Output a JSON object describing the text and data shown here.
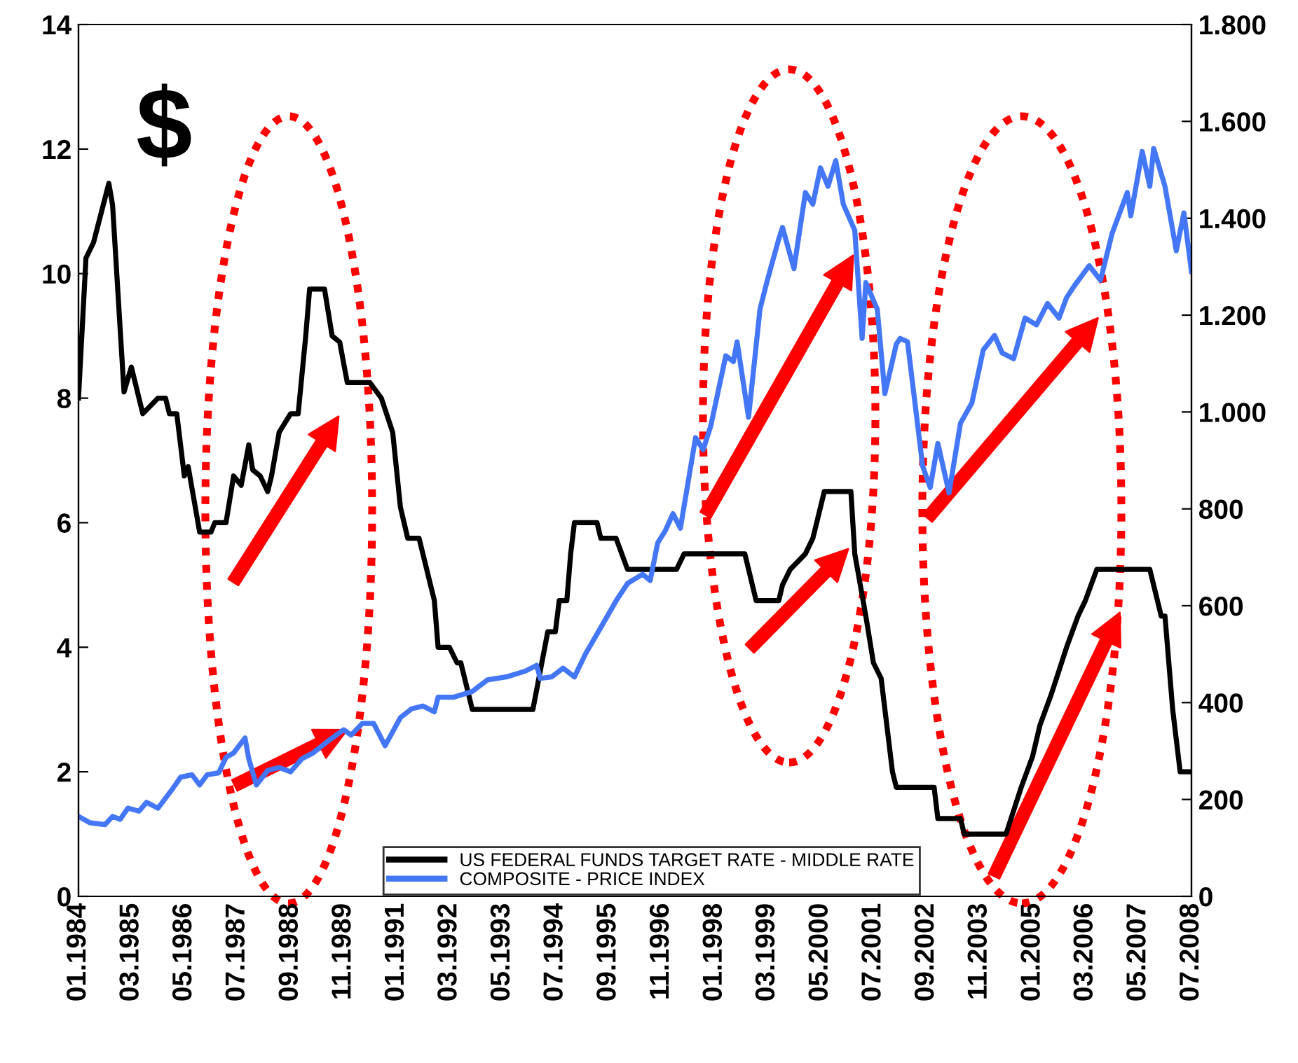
{
  "chart_data": {
    "type": "line",
    "annotations": [
      "$"
    ],
    "legend": "bottom",
    "grid": false,
    "xlim": [
      "1984-01",
      "2008-07"
    ],
    "xticks": [
      {
        "value": "1984-01",
        "label": "01.1984"
      },
      {
        "value": "1985-03",
        "label": "03.1985"
      },
      {
        "value": "1986-05",
        "label": "05.1986"
      },
      {
        "value": "1987-07",
        "label": "07.1987"
      },
      {
        "value": "1988-09",
        "label": "09.1988"
      },
      {
        "value": "1989-11",
        "label": "11.1989"
      },
      {
        "value": "1991-01",
        "label": "01.1991"
      },
      {
        "value": "1992-03",
        "label": "03.1992"
      },
      {
        "value": "1993-05",
        "label": "05.1993"
      },
      {
        "value": "1994-07",
        "label": "07.1994"
      },
      {
        "value": "1995-09",
        "label": "09.1995"
      },
      {
        "value": "1996-11",
        "label": "11.1996"
      },
      {
        "value": "1998-01",
        "label": "01.1998"
      },
      {
        "value": "1999-03",
        "label": "03.1999"
      },
      {
        "value": "2000-05",
        "label": "05.2000"
      },
      {
        "value": "2001-07",
        "label": "07.2001"
      },
      {
        "value": "2002-09",
        "label": "09.2002"
      },
      {
        "value": "2003-11",
        "label": "11.2003"
      },
      {
        "value": "2005-01",
        "label": "01.2005"
      },
      {
        "value": "2006-03",
        "label": "03.2006"
      },
      {
        "value": "2007-05",
        "label": "05.2007"
      },
      {
        "value": "2008-07",
        "label": "07.2008"
      }
    ],
    "ylim": [
      0,
      14
    ],
    "yticks": [
      0,
      2,
      4,
      6,
      8,
      10,
      12,
      14
    ],
    "y2lim": [
      0,
      1800
    ],
    "y2ticks": [
      0,
      200,
      400,
      600,
      800,
      {
        "value": 1000,
        "label": "1.000"
      },
      {
        "value": 1200,
        "label": "1.200"
      },
      {
        "value": 1400,
        "label": "1.400"
      },
      {
        "value": 1600,
        "label": "1.600"
      },
      {
        "value": 1800,
        "label": "1.800"
      }
    ],
    "series": [
      {
        "name": "US FEDERAL FUNDS TARGET RATE - MIDDLE RATE",
        "color": "#000000",
        "x": [
          "1984-01",
          "1984-03",
          "1984-05",
          "1984-09",
          "1984-10",
          "1985-01",
          "1985-03",
          "1985-06",
          "1985-10",
          "1985-12",
          "1986-01",
          "1986-03",
          "1986-05",
          "1986-06",
          "1986-09",
          "1986-12",
          "1987-01",
          "1987-04",
          "1987-06",
          "1987-08",
          "1987-10",
          "1987-11",
          "1988-01",
          "1988-03",
          "1988-04",
          "1988-06",
          "1988-09",
          "1988-11",
          "1989-01",
          "1989-02",
          "1989-06",
          "1989-08",
          "1989-10",
          "1989-12",
          "1990-06",
          "1990-09",
          "1990-12",
          "1991-02",
          "1991-04",
          "1991-07",
          "1991-11",
          "1991-12",
          "1992-03",
          "1992-05",
          "1992-06",
          "1992-09",
          "1994-01",
          "1994-05",
          "1994-07",
          "1994-08",
          "1994-10",
          "1994-11",
          "1994-12",
          "1995-06",
          "1995-07",
          "1995-11",
          "1996-02",
          "1997-03",
          "1997-05",
          "1998-09",
          "1998-12",
          "1999-06",
          "1999-07",
          "1999-09",
          "2000-01",
          "2000-03",
          "2000-04",
          "2000-06",
          "2001-01",
          "2001-02",
          "2001-05",
          "2001-07",
          "2001-09",
          "2001-12",
          "2002-01",
          "2002-11",
          "2002-12",
          "2003-06",
          "2003-07",
          "2004-06",
          "2004-10",
          "2005-01",
          "2005-03",
          "2005-06",
          "2005-10",
          "2006-01",
          "2006-03",
          "2006-06",
          "2007-08",
          "2007-11",
          "2007-12",
          "2008-02",
          "2008-04",
          "2008-07"
        ],
        "values": [
          8.0,
          10.25,
          10.5,
          11.45,
          11.1,
          8.1,
          8.5,
          7.75,
          8.0,
          8.0,
          7.75,
          7.75,
          6.75,
          6.9,
          5.85,
          5.85,
          6.0,
          6.0,
          6.75,
          6.6,
          7.25,
          6.85,
          6.75,
          6.5,
          6.75,
          7.45,
          7.75,
          7.75,
          9.0,
          9.75,
          9.75,
          9.0,
          8.9,
          8.25,
          8.25,
          8.0,
          7.45,
          6.25,
          5.75,
          5.75,
          4.75,
          4.0,
          4.0,
          3.75,
          3.75,
          3.0,
          3.0,
          4.25,
          4.25,
          4.75,
          4.75,
          5.5,
          6.0,
          6.0,
          5.75,
          5.75,
          5.25,
          5.25,
          5.5,
          5.5,
          4.75,
          4.75,
          5.0,
          5.25,
          5.5,
          5.75,
          6.0,
          6.5,
          6.5,
          5.5,
          4.5,
          3.75,
          3.5,
          2.0,
          1.75,
          1.75,
          1.25,
          1.25,
          1.0,
          1.0,
          1.75,
          2.25,
          2.75,
          3.25,
          4.0,
          4.5,
          4.75,
          5.25,
          5.25,
          4.5,
          4.5,
          3.0,
          2.0,
          2.0
        ]
      },
      {
        "name": "COMPOSITE - PRICE INDEX",
        "axis": "y2",
        "color": "#4477f5",
        "x": [
          "1984-01",
          "1984-04",
          "1984-08",
          "1984-10",
          "1984-12",
          "1985-02",
          "1985-05",
          "1985-07",
          "1985-10",
          "1986-02",
          "1986-04",
          "1986-07",
          "1986-09",
          "1986-11",
          "1987-02",
          "1987-04",
          "1987-06",
          "1987-09",
          "1987-10",
          "1987-12",
          "1988-03",
          "1988-06",
          "1988-09",
          "1988-12",
          "1989-03",
          "1989-07",
          "1989-11",
          "1990-01",
          "1990-04",
          "1990-07",
          "1990-10",
          "1991-02",
          "1991-05",
          "1991-08",
          "1991-11",
          "1991-12",
          "1992-04",
          "1992-09",
          "1993-01",
          "1993-06",
          "1993-11",
          "1994-02",
          "1994-03",
          "1994-06",
          "1994-09",
          "1994-12",
          "1995-03",
          "1995-07",
          "1995-11",
          "1996-02",
          "1996-06",
          "1996-08",
          "1996-10",
          "1996-12",
          "1997-02",
          "1997-04",
          "1997-08",
          "1997-10",
          "1997-12",
          "1998-04",
          "1998-06",
          "1998-07",
          "1998-10",
          "1999-01",
          "1999-03",
          "1999-06",
          "1999-07",
          "1999-10",
          "2000-01",
          "2000-03",
          "2000-05",
          "2000-07",
          "2000-09",
          "2000-11",
          "2001-02",
          "2001-04",
          "2001-05",
          "2001-08",
          "2001-10",
          "2002-01",
          "2002-02",
          "2002-04",
          "2002-08",
          "2002-10",
          "2002-12",
          "2003-03",
          "2003-06",
          "2003-09",
          "2003-12",
          "2004-03",
          "2004-05",
          "2004-08",
          "2004-11",
          "2005-02",
          "2005-05",
          "2005-08",
          "2005-10",
          "2005-12",
          "2006-04",
          "2006-07",
          "2006-10",
          "2007-02",
          "2007-03",
          "2007-06",
          "2007-08",
          "2007-09",
          "2007-12",
          "2008-03",
          "2008-05",
          "2008-07"
        ],
        "values": [
          165,
          152,
          148,
          165,
          159,
          182,
          176,
          194,
          182,
          224,
          246,
          251,
          230,
          251,
          255,
          287,
          296,
          327,
          284,
          230,
          260,
          266,
          257,
          284,
          296,
          321,
          344,
          333,
          357,
          357,
          311,
          369,
          387,
          393,
          381,
          411,
          411,
          423,
          447,
          453,
          465,
          477,
          450,
          453,
          471,
          453,
          501,
          555,
          610,
          646,
          665,
          652,
          730,
          755,
          790,
          760,
          947,
          922,
          971,
          1116,
          1104,
          1145,
          989,
          1212,
          1272,
          1357,
          1381,
          1296,
          1453,
          1429,
          1504,
          1466,
          1519,
          1429,
          1375,
          1152,
          1267,
          1212,
          1038,
          1140,
          1152,
          1145,
          888,
          844,
          935,
          833,
          977,
          1019,
          1128,
          1158,
          1122,
          1110,
          1194,
          1180,
          1224,
          1194,
          1236,
          1260,
          1302,
          1272,
          1368,
          1453,
          1405,
          1538,
          1466,
          1544,
          1466,
          1333,
          1411,
          1290
        ]
      }
    ]
  }
}
